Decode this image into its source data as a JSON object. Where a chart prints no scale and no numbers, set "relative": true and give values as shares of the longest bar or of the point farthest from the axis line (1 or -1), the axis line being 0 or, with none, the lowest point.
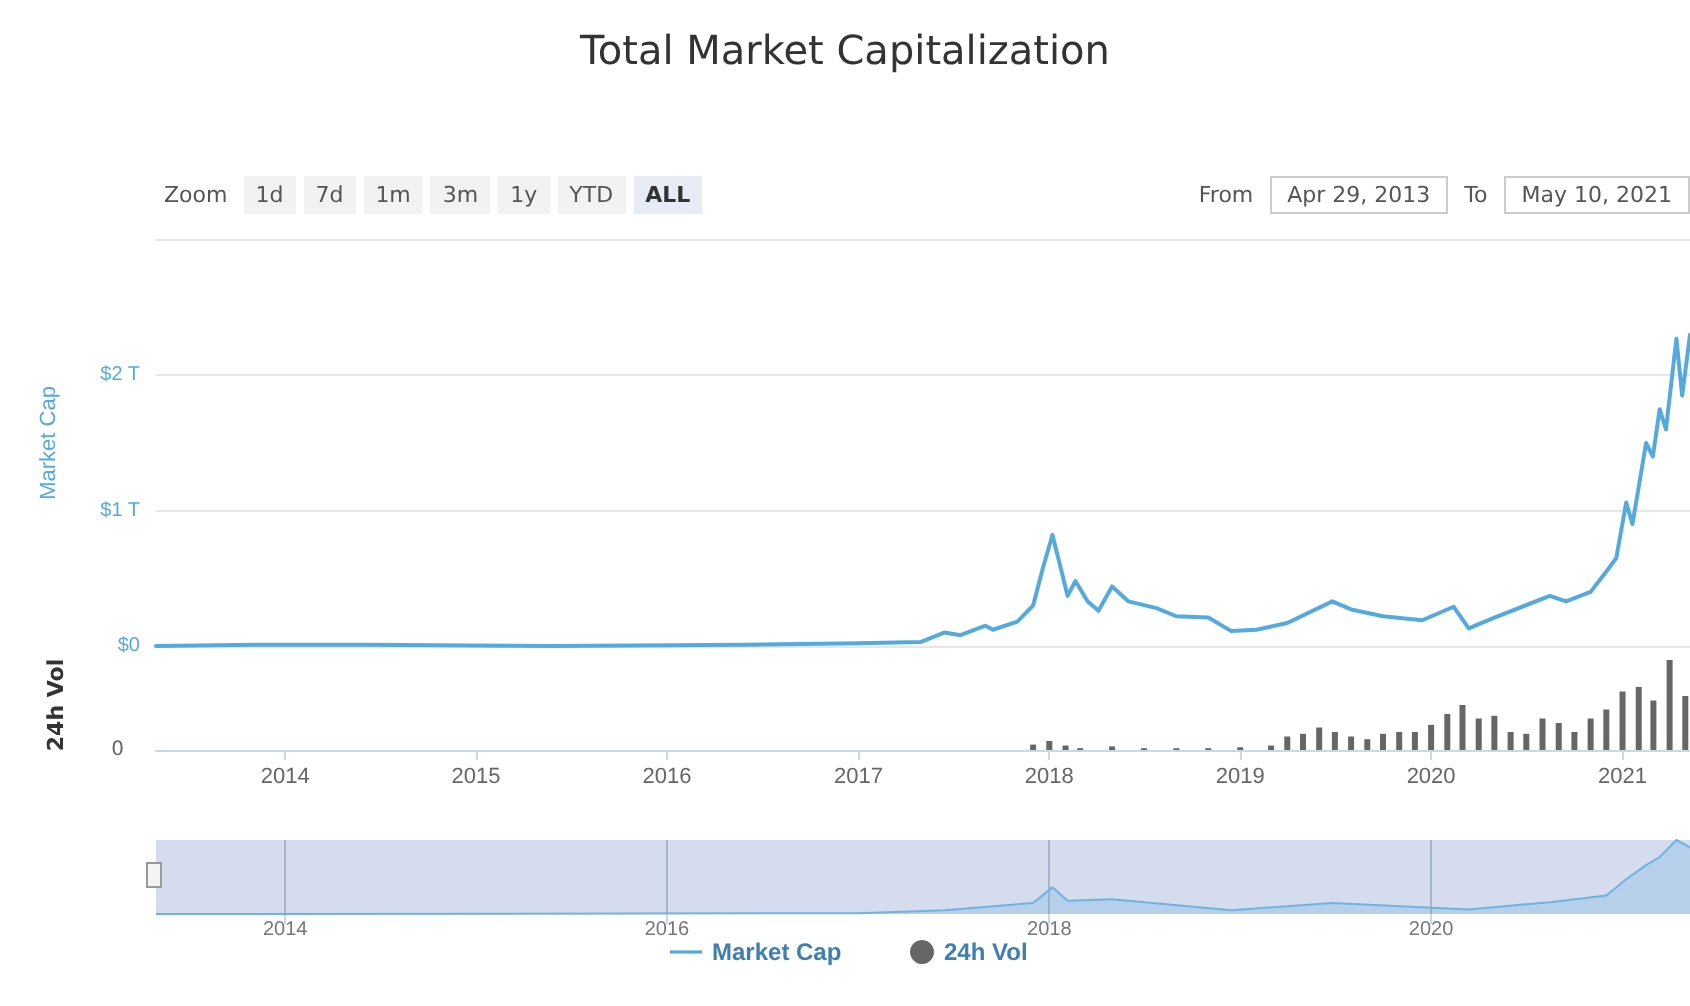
{
  "chart_data": [
    {
      "type": "line",
      "title": "Total Market Capitalization",
      "ylabel": "Market Cap",
      "annotations": [
        "Zoom",
        "1d",
        "7d",
        "1m",
        "3m",
        "1y",
        "YTD",
        "ALL",
        "From",
        "Apr 29, 2013",
        "To",
        "May 10, 2021"
      ],
      "x": [
        "2013-04-29",
        "2013-12-01",
        "2014-06-01",
        "2015-06-01",
        "2016-06-01",
        "2017-01-01",
        "2017-05-01",
        "2017-06-15",
        "2017-07-15",
        "2017-09-01",
        "2017-09-15",
        "2017-11-01",
        "2017-12-01",
        "2017-12-20",
        "2018-01-07",
        "2018-01-20",
        "2018-02-05",
        "2018-02-20",
        "2018-03-15",
        "2018-04-05",
        "2018-05-01",
        "2018-06-01",
        "2018-07-25",
        "2018-09-01",
        "2018-11-01",
        "2018-12-15",
        "2019-02-01",
        "2019-04-01",
        "2019-06-26",
        "2019-08-01",
        "2019-10-01",
        "2019-12-15",
        "2020-02-13",
        "2020-03-13",
        "2020-05-01",
        "2020-08-15",
        "2020-09-15",
        "2020-11-01",
        "2020-12-01",
        "2020-12-20",
        "2021-01-08",
        "2021-01-20",
        "2021-02-15",
        "2021-02-28",
        "2021-03-13",
        "2021-03-25",
        "2021-04-14",
        "2021-04-25",
        "2021-05-10"
      ],
      "series": [
        {
          "name": "Market Cap",
          "color": "#55aadd",
          "values": [
            0,
            0.01,
            0.01,
            0,
            0.01,
            0.02,
            0.03,
            0.1,
            0.08,
            0.15,
            0.12,
            0.18,
            0.3,
            0.58,
            0.82,
            0.62,
            0.37,
            0.48,
            0.33,
            0.26,
            0.44,
            0.33,
            0.28,
            0.22,
            0.21,
            0.11,
            0.12,
            0.17,
            0.33,
            0.27,
            0.22,
            0.19,
            0.29,
            0.13,
            0.21,
            0.37,
            0.33,
            0.4,
            0.55,
            0.65,
            1.06,
            0.9,
            1.5,
            1.4,
            1.75,
            1.6,
            2.27,
            1.85,
            2.3
          ]
        }
      ],
      "xlim": [
        "2013-04-29",
        "2021-05-10"
      ],
      "ylim": [
        0,
        3
      ],
      "yticks": [
        {
          "value": 0,
          "label": "$0"
        },
        {
          "value": 1,
          "label": "$1 T"
        },
        {
          "value": 2,
          "label": "$2 T"
        }
      ],
      "grid": "y",
      "tick_labels": "y",
      "legend": "bottom",
      "marker": "none",
      "line_style": "solid"
    },
    {
      "type": "bar",
      "ylabel": "24h Vol",
      "relative": true,
      "annotations": [
        "0"
      ],
      "x": [
        "2017-12-01",
        "2018-01-01",
        "2018-02-01",
        "2018-03-01",
        "2018-05-01",
        "2018-07-01",
        "2018-09-01",
        "2018-11-01",
        "2019-01-01",
        "2019-03-01",
        "2019-04-01",
        "2019-05-01",
        "2019-06-01",
        "2019-07-01",
        "2019-08-01",
        "2019-09-01",
        "2019-10-01",
        "2019-11-01",
        "2019-12-01",
        "2020-01-01",
        "2020-02-01",
        "2020-03-01",
        "2020-04-01",
        "2020-05-01",
        "2020-06-01",
        "2020-07-01",
        "2020-08-01",
        "2020-09-01",
        "2020-10-01",
        "2020-11-01",
        "2020-12-01",
        "2021-01-01",
        "2021-02-01",
        "2021-03-01",
        "2021-04-01",
        "2021-05-01"
      ],
      "series": [
        {
          "name": "24h Vol",
          "color": "#666666",
          "values": [
            0.06,
            0.1,
            0.05,
            0.02,
            0.04,
            0.02,
            0.02,
            0.02,
            0.03,
            0.05,
            0.15,
            0.18,
            0.25,
            0.2,
            0.15,
            0.12,
            0.18,
            0.2,
            0.2,
            0.28,
            0.4,
            0.5,
            0.35,
            0.38,
            0.2,
            0.18,
            0.35,
            0.3,
            0.2,
            0.35,
            0.45,
            0.65,
            0.7,
            0.55,
            1.0,
            0.6
          ]
        }
      ],
      "xlim": [
        "2013-04-29",
        "2021-05-10"
      ],
      "xticks": [
        {
          "value": "2014",
          "label": "2014"
        },
        {
          "value": "2015",
          "label": "2015"
        },
        {
          "value": "2016",
          "label": "2016"
        },
        {
          "value": "2017",
          "label": "2017"
        },
        {
          "value": "2018",
          "label": "2018"
        },
        {
          "value": "2019",
          "label": "2019"
        },
        {
          "value": "2020",
          "label": "2020"
        },
        {
          "value": "2021",
          "label": "2021"
        }
      ],
      "grid": false,
      "legend": "bottom"
    },
    {
      "type": "area",
      "relative": true,
      "x": [
        "2013-04-29",
        "2017-01-01",
        "2017-06-15",
        "2017-12-01",
        "2018-01-07",
        "2018-02-05",
        "2018-05-01",
        "2018-12-15",
        "2019-06-26",
        "2020-03-13",
        "2020-08-15",
        "2020-12-01",
        "2021-01-08",
        "2021-02-15",
        "2021-03-13",
        "2021-04-14",
        "2021-05-10"
      ],
      "series": [
        {
          "color": "#6fb3e0",
          "values": [
            0,
            0.01,
            0.05,
            0.15,
            0.36,
            0.18,
            0.2,
            0.05,
            0.15,
            0.06,
            0.16,
            0.25,
            0.47,
            0.66,
            0.77,
            1.0,
            0.9
          ]
        }
      ],
      "xlim": [
        "2013-04-29",
        "2021-05-10"
      ],
      "xticks": [
        {
          "value": "2014",
          "label": "2014"
        },
        {
          "value": "2016",
          "label": "2016"
        },
        {
          "value": "2018",
          "label": "2018"
        },
        {
          "value": "2020",
          "label": "2020"
        }
      ],
      "grid": "x"
    }
  ]
}
